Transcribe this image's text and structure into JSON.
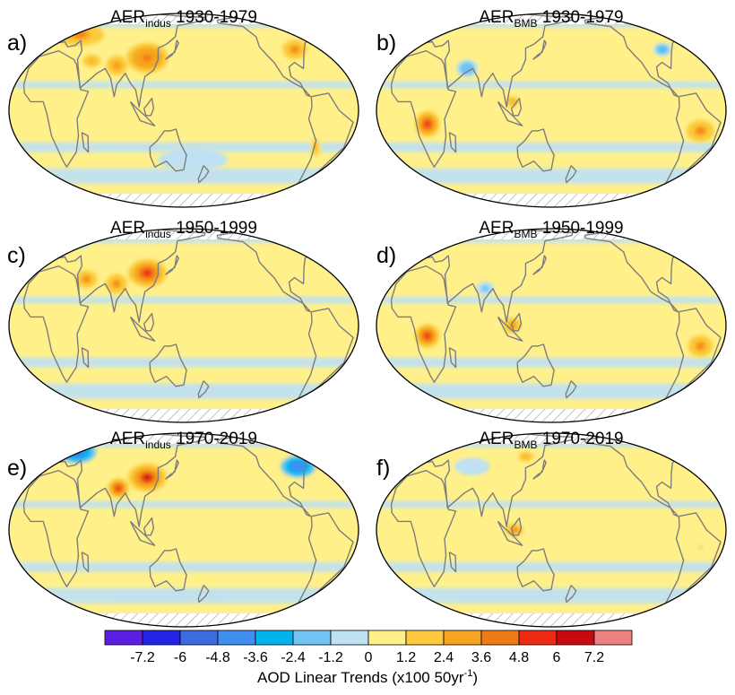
{
  "figure": {
    "colorbar_title_main": "AOD Linear Trends (x100 50yr",
    "colorbar_title_sup": "-1",
    "colorbar_title_end": ")"
  },
  "chart_data": {
    "type": "heatmap",
    "projection": "Robinson (global)",
    "colorbar": {
      "levels": [
        -7.2,
        -6,
        -4.8,
        -3.6,
        -2.4,
        -1.2,
        0,
        1.2,
        2.4,
        3.6,
        4.8,
        6,
        7.2
      ],
      "tick_labels": [
        "-7.2",
        "-6",
        "-4.8",
        "-3.6",
        "-2.4",
        "-1.2",
        "0",
        "1.2",
        "2.4",
        "3.6",
        "4.8",
        "6",
        "7.2"
      ],
      "colors": [
        "#5a1fe0",
        "#2323e8",
        "#3a6be0",
        "#3f8ef0",
        "#00b4f0",
        "#70c4f2",
        "#bfe1f2",
        "#fff08a",
        "#fcca3c",
        "#f6a51f",
        "#f07a16",
        "#ee2a12",
        "#c80a10",
        "#ee8080"
      ]
    },
    "panels": [
      {
        "label": "a)",
        "title_base": "AER",
        "title_sub": "indus",
        "title_period": "1930-1979",
        "hotspots": [
          {
            "lon": 110,
            "lat": 32,
            "rx": 24,
            "ry": 14,
            "level": 4.5
          },
          {
            "lon": 78,
            "lat": 27,
            "rx": 12,
            "ry": 9,
            "level": 3.5
          },
          {
            "lon": 25,
            "lat": 50,
            "rx": 28,
            "ry": 10,
            "level": 4.2
          },
          {
            "lon": -85,
            "lat": 38,
            "rx": 14,
            "ry": 9,
            "level": 3.8
          },
          {
            "lon": -70,
            "lat": -22,
            "rx": 5,
            "ry": 12,
            "level": 2.5
          },
          {
            "lon": 50,
            "lat": 30,
            "rx": 14,
            "ry": 8,
            "level": 2.5
          }
        ],
        "cool_spots": [
          {
            "lon": 160,
            "lat": -30,
            "rx": 40,
            "ry": 10,
            "level": -1.0
          }
        ]
      },
      {
        "label": "b)",
        "title_base": "AER",
        "title_sub": "BMB",
        "title_period": "1930-1979",
        "hotspots": [
          {
            "lon": -55,
            "lat": -12,
            "rx": 16,
            "ry": 10,
            "level": 3.8
          },
          {
            "lon": 22,
            "lat": -8,
            "rx": 14,
            "ry": 12,
            "level": 4.8
          },
          {
            "lon": 110,
            "lat": 5,
            "rx": 10,
            "ry": 7,
            "level": 2.6
          }
        ],
        "cool_spots": [
          {
            "lon": -85,
            "lat": 38,
            "rx": 10,
            "ry": 6,
            "level": -3.0
          },
          {
            "lon": 60,
            "lat": 25,
            "rx": 12,
            "ry": 8,
            "level": -2.4
          }
        ]
      },
      {
        "label": "c)",
        "title_base": "AER",
        "title_sub": "indus",
        "title_period": "1950-1999",
        "hotspots": [
          {
            "lon": 110,
            "lat": 32,
            "rx": 22,
            "ry": 13,
            "level": 5.2
          },
          {
            "lon": 78,
            "lat": 25,
            "rx": 12,
            "ry": 9,
            "level": 4.0
          },
          {
            "lon": 45,
            "lat": 28,
            "rx": 12,
            "ry": 8,
            "level": 3.6
          }
        ],
        "cool_spots": [
          {
            "lon": 20,
            "lat": 58,
            "rx": 10,
            "ry": 6,
            "level": -1.0
          }
        ]
      },
      {
        "label": "d)",
        "title_base": "AER",
        "title_sub": "BMB",
        "title_period": "1950-1999",
        "hotspots": [
          {
            "lon": -55,
            "lat": -12,
            "rx": 14,
            "ry": 10,
            "level": 4.0
          },
          {
            "lon": 22,
            "lat": -6,
            "rx": 14,
            "ry": 11,
            "level": 5.0
          },
          {
            "lon": 110,
            "lat": 0,
            "rx": 10,
            "ry": 7,
            "level": 3.8
          }
        ],
        "cool_spots": [
          {
            "lon": 80,
            "lat": 22,
            "rx": 10,
            "ry": 6,
            "level": -1.8
          }
        ]
      },
      {
        "label": "e)",
        "title_base": "AER",
        "title_sub": "indus",
        "title_period": "1970-2019",
        "hotspots": [
          {
            "lon": 110,
            "lat": 32,
            "rx": 22,
            "ry": 13,
            "level": 6.0
          },
          {
            "lon": 80,
            "lat": 25,
            "rx": 12,
            "ry": 9,
            "level": 4.8
          }
        ],
        "cool_spots": [
          {
            "lon": -80,
            "lat": 40,
            "rx": 20,
            "ry": 10,
            "level": -4.8
          },
          {
            "lon": 20,
            "lat": 52,
            "rx": 22,
            "ry": 10,
            "level": -6.0
          }
        ]
      },
      {
        "label": "f)",
        "title_base": "AER",
        "title_sub": "BMB",
        "title_period": "1970-2019",
        "hotspots": [
          {
            "lon": 120,
            "lat": 48,
            "rx": 12,
            "ry": 6,
            "level": 2.6
          },
          {
            "lon": 112,
            "lat": 0,
            "rx": 10,
            "ry": 6,
            "level": 3.6
          },
          {
            "lon": -55,
            "lat": -10,
            "rx": 10,
            "ry": 8,
            "level": 1.5
          }
        ],
        "cool_spots": [
          {
            "lon": 60,
            "lat": 40,
            "rx": 20,
            "ry": 8,
            "level": -1.0
          }
        ]
      }
    ]
  }
}
